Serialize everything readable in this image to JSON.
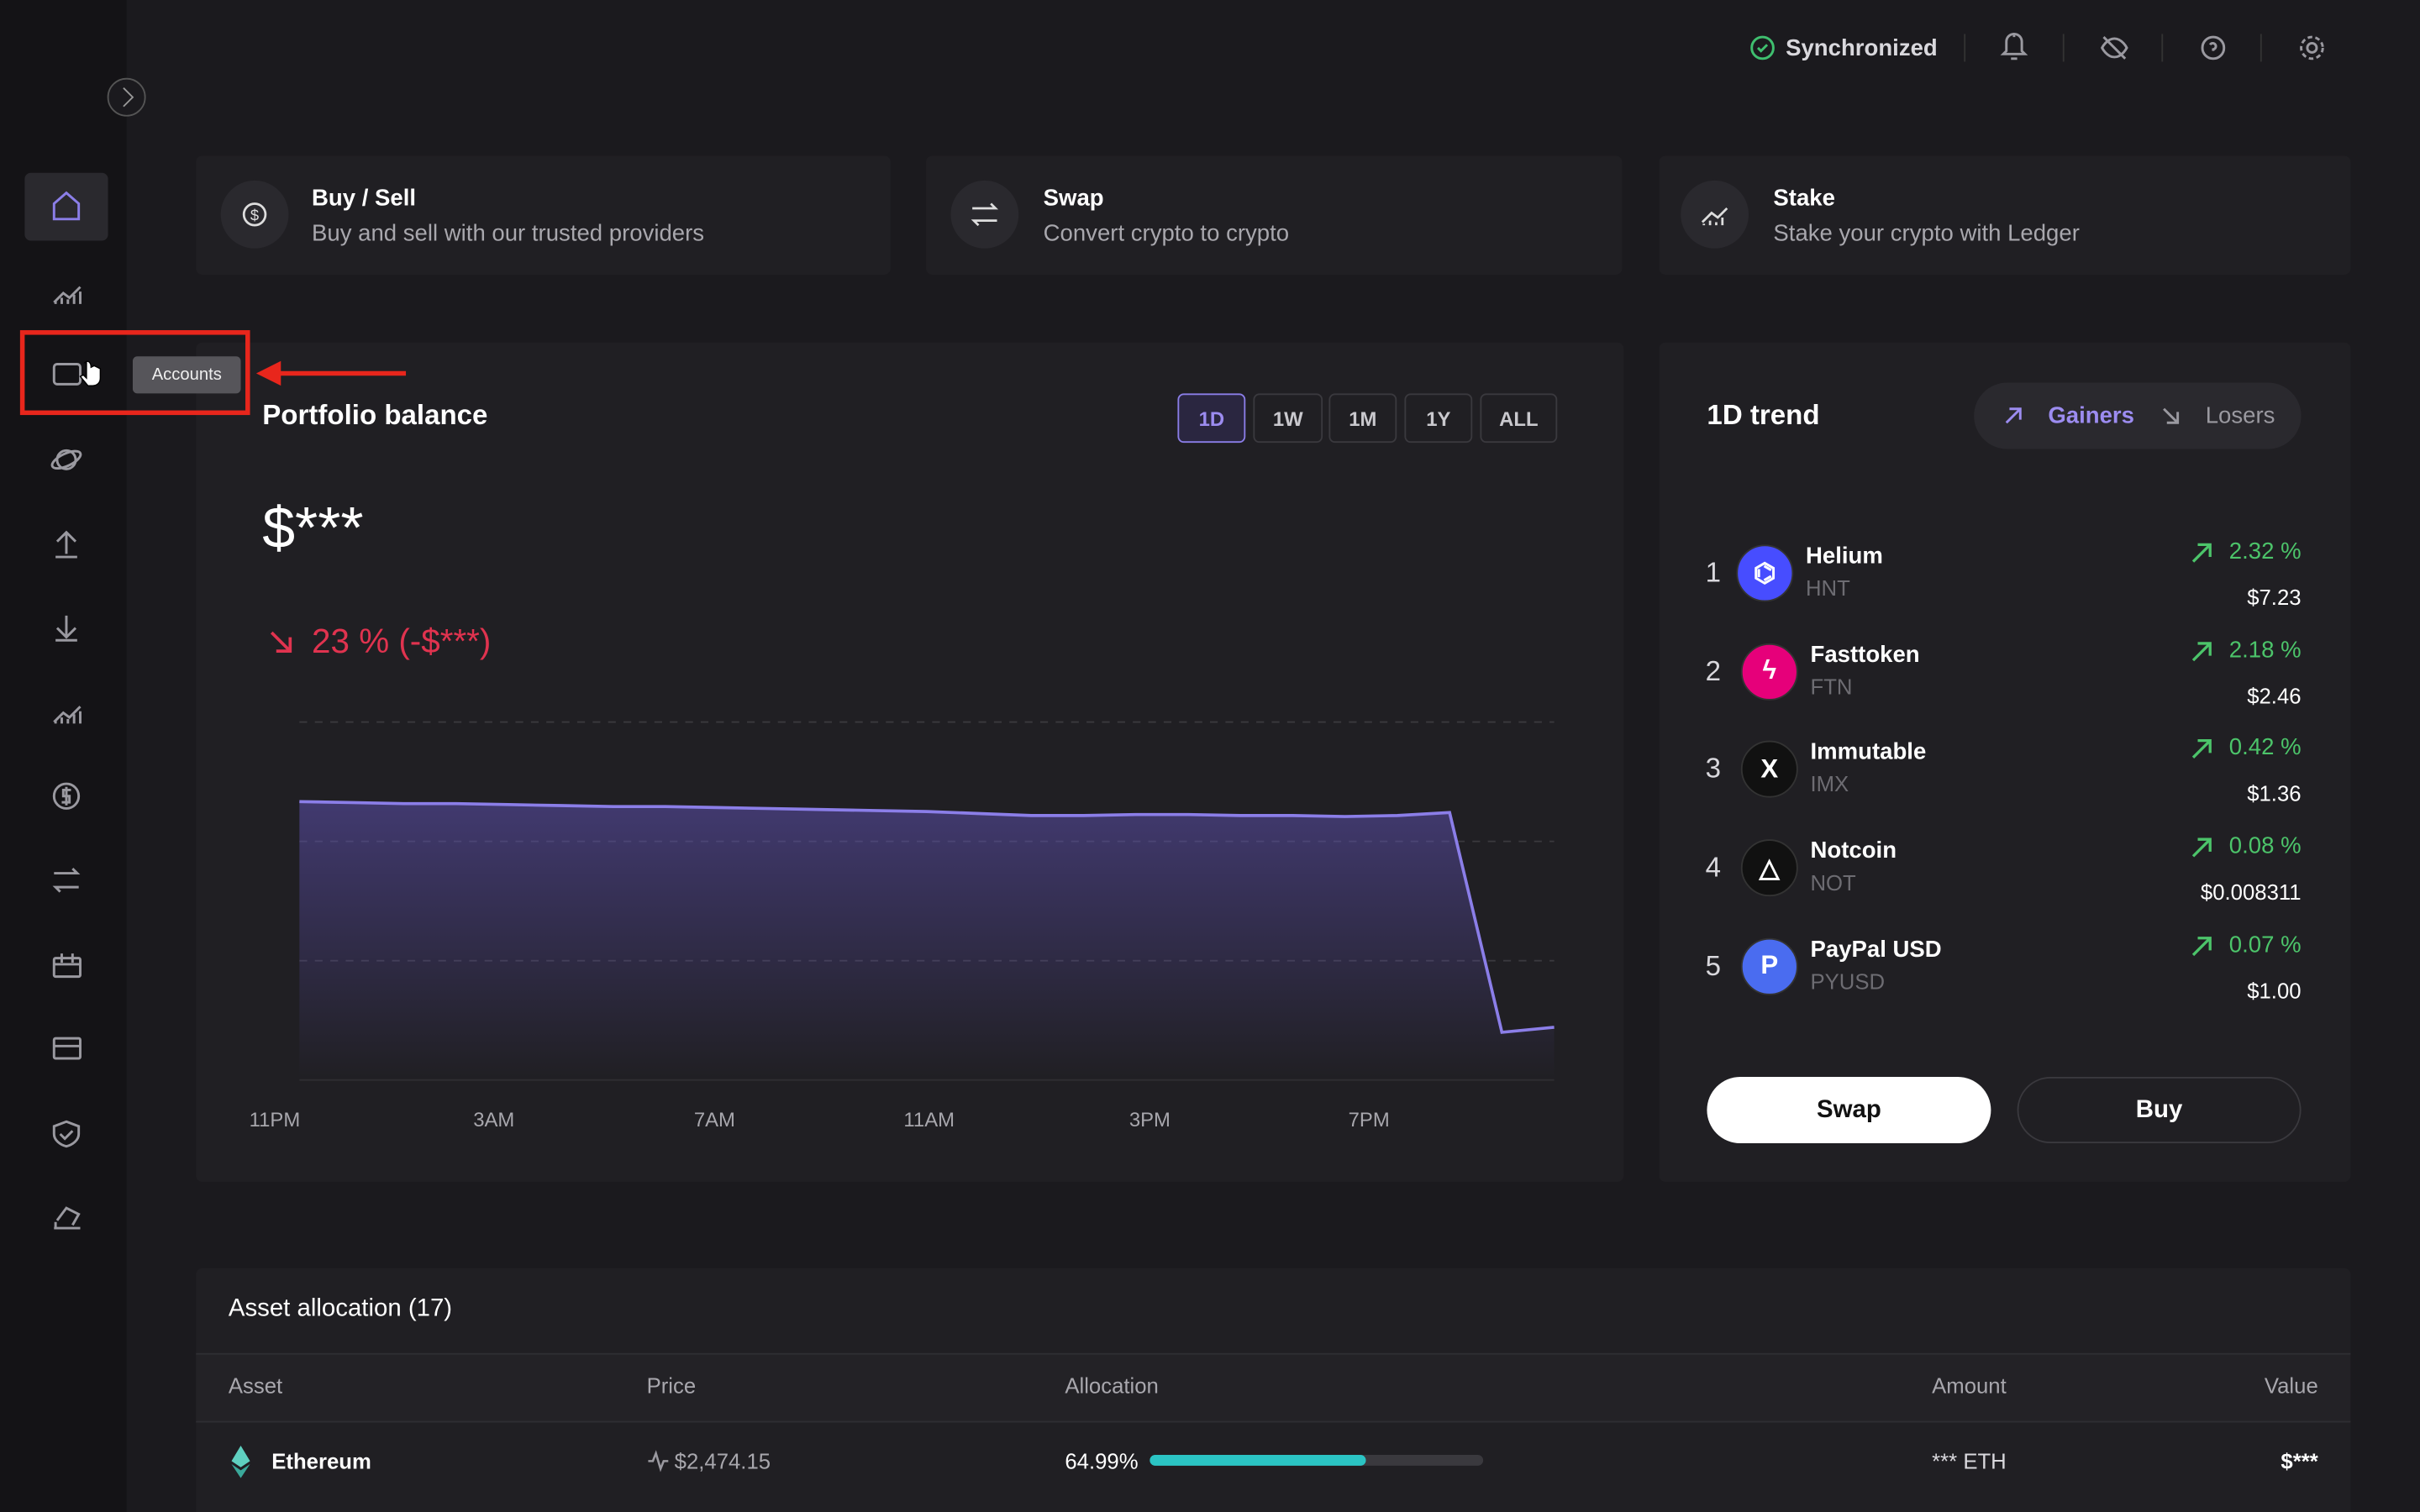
{
  "topbar": {
    "status": "Synchronized"
  },
  "tooltip": "Accounts",
  "actions": [
    {
      "title": "Buy / Sell",
      "subtitle": "Buy and sell with our trusted providers"
    },
    {
      "title": "Swap",
      "subtitle": "Convert crypto to crypto"
    },
    {
      "title": "Stake",
      "subtitle": "Stake your crypto with Ledger"
    }
  ],
  "portfolio": {
    "title": "Portfolio balance",
    "ranges": [
      "1D",
      "1W",
      "1M",
      "1Y",
      "ALL"
    ],
    "balance": "$***",
    "change": "23 % (-$***)"
  },
  "chart_data": {
    "type": "area",
    "x_labels": [
      "11PM",
      "3AM",
      "7AM",
      "11AM",
      "3PM",
      "7PM"
    ],
    "values": [
      100,
      99.9,
      99.8,
      99.8,
      99.7,
      99.6,
      99.5,
      99.5,
      99.4,
      99.3,
      99.2,
      99.1,
      99.0,
      98.8,
      98.6,
      98.6,
      98.7,
      98.7,
      98.6,
      98.6,
      98.5,
      98.6,
      98.9,
      76.8,
      77.3
    ],
    "ylim": [
      72,
      108
    ],
    "gridlines": [
      84,
      96,
      108
    ],
    "color": "#8b7ee8"
  },
  "trend": {
    "title": "1D trend",
    "tabs": [
      "Gainers",
      "Losers"
    ],
    "rows": [
      {
        "rank": "1",
        "name": "Helium",
        "ticker": "HNT",
        "change": "2.32 %",
        "price": "$7.23"
      },
      {
        "rank": "2",
        "name": "Fasttoken",
        "ticker": "FTN",
        "change": "2.18 %",
        "price": "$2.46"
      },
      {
        "rank": "3",
        "name": "Immutable",
        "ticker": "IMX",
        "change": "0.42 %",
        "price": "$1.36"
      },
      {
        "rank": "4",
        "name": "Notcoin",
        "ticker": "NOT",
        "change": "0.08 %",
        "price": "$0.008311"
      },
      {
        "rank": "5",
        "name": "PayPal USD",
        "ticker": "PYUSD",
        "change": "0.07 %",
        "price": "$1.00"
      }
    ],
    "buttons": [
      "Swap",
      "Buy"
    ]
  },
  "allocation": {
    "title": "Asset allocation (17)",
    "columns": [
      "Asset",
      "Price",
      "Allocation",
      "Amount",
      "Value"
    ],
    "rows": [
      {
        "asset": "Ethereum",
        "price": "$2,474.15",
        "allocation": {
          "value": 64.99,
          "label": "64.99%"
        },
        "amount": "*** ETH",
        "value": "$***"
      }
    ]
  }
}
